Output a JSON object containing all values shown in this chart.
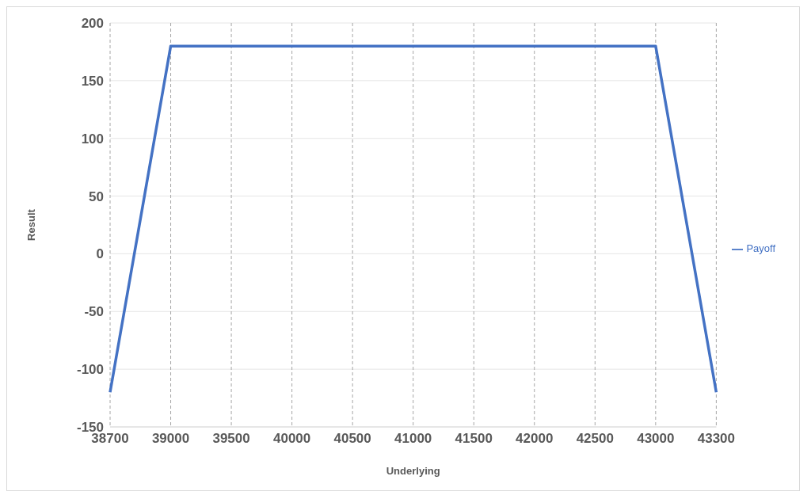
{
  "chart_data": {
    "type": "line",
    "xlabel": "Underlying",
    "ylabel": "Result",
    "categories": [
      "38700",
      "39000",
      "39500",
      "40000",
      "40500",
      "41000",
      "41500",
      "42000",
      "42500",
      "43000",
      "43300"
    ],
    "series": [
      {
        "name": "Payoff",
        "color": "#4472c4",
        "values": [
          -120,
          180,
          180,
          180,
          180,
          180,
          180,
          180,
          180,
          180,
          -120
        ]
      }
    ],
    "ylim": [
      -150,
      200
    ],
    "yticks": [
      -150,
      -100,
      -50,
      0,
      50,
      100,
      150,
      200
    ],
    "grid": true,
    "legend": "right",
    "marker": "none",
    "line_style": "solid"
  }
}
